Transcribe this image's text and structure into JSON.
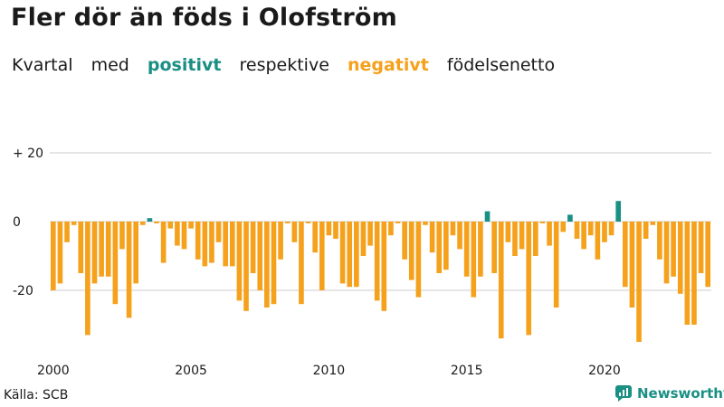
{
  "title": "Fler dör än föds i Olofström",
  "subtitle": {
    "parts": [
      "Kvartal",
      "med",
      "positivt",
      "respektive",
      "negativt",
      "födelsenetto"
    ]
  },
  "source": "Källa: SCB",
  "brand": {
    "name": "Newsworthy",
    "icon": "newsworthy-logo-icon"
  },
  "colors": {
    "positive": "#1a8f84",
    "negative": "#f5a11c",
    "text": "#1a1a1a",
    "grid": "#cccccc"
  },
  "chart_data": {
    "type": "bar",
    "title": "Fler dör än föds i Olofström",
    "subtitle": "Kvartal med positivt respektive negativt födelsenetto",
    "xlabel": "",
    "ylabel": "",
    "ylim": [
      -40,
      25
    ],
    "yticks": [
      20,
      0,
      -20
    ],
    "ytick_labels": [
      "+ 20",
      "0",
      "-20"
    ],
    "xtick_labels": [
      "2000",
      "2005",
      "2010",
      "2015",
      "2020"
    ],
    "start": "2000 Q1",
    "frequency": "quarter",
    "values": [
      -20,
      -18,
      -6,
      -1,
      -15,
      -33,
      -18,
      -16,
      -16,
      -24,
      -8,
      -28,
      -18,
      -1,
      1,
      -0.5,
      -12,
      -2,
      -7,
      -8,
      -2,
      -11,
      -13,
      -12,
      -6,
      -13,
      -13,
      -23,
      -26,
      -15,
      -20,
      -25,
      -24,
      -11,
      -0.5,
      -6,
      -24,
      -0.5,
      -9,
      -20,
      -4,
      -5,
      -18,
      -19,
      -19,
      -10,
      -7,
      -23,
      -26,
      -4,
      -0.5,
      -11,
      -17,
      -22,
      -1,
      -9,
      -15,
      -14,
      -4,
      -8,
      -16,
      -22,
      -16,
      3,
      -15,
      -34,
      -6,
      -10,
      -8,
      -33,
      -10,
      -0.5,
      -7,
      -25,
      -3,
      2,
      -5,
      -8,
      -4,
      -11,
      -6,
      -4,
      6,
      -19,
      -25,
      -35,
      -5,
      -1,
      -11,
      -18,
      -16,
      -21,
      -30,
      -30,
      -15,
      -19
    ]
  }
}
